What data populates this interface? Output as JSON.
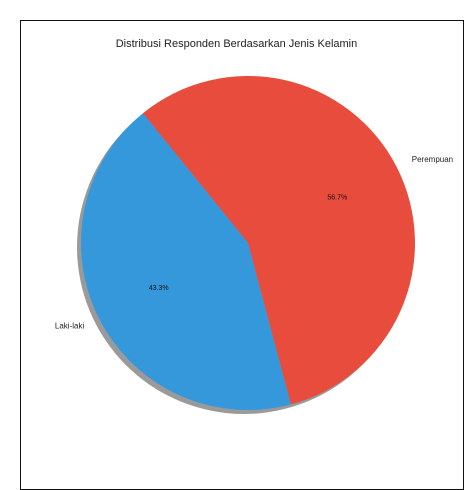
{
  "chart_data": {
    "type": "pie",
    "title": "Distribusi Responden Berdasarkan Jenis Kelamin",
    "slices": [
      {
        "label": "Perempuan",
        "value": 56.7,
        "pct_label": "56.7%",
        "color": "#e74c3c"
      },
      {
        "label": "Laki-laki",
        "value": 43.3,
        "pct_label": "43.3%",
        "color": "#3498db"
      }
    ],
    "shadow": true,
    "legend": "none"
  }
}
